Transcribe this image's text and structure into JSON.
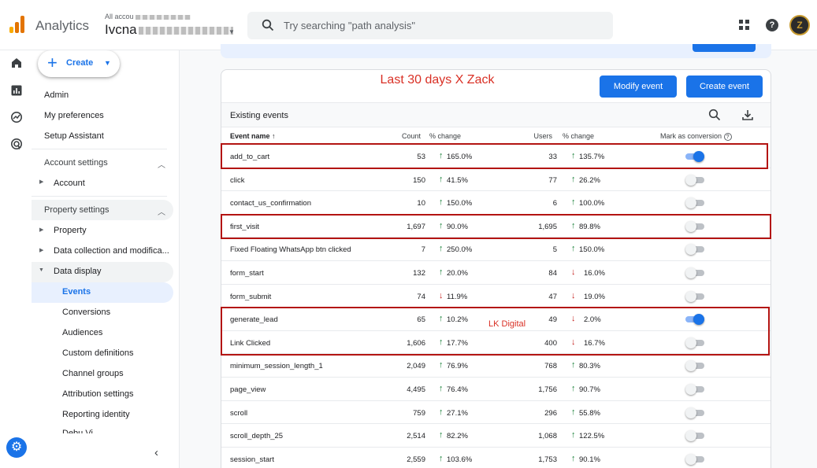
{
  "header": {
    "app_name": "Analytics",
    "account_small": "All accou",
    "account_big": "Ivcna",
    "search_placeholder": "Try searching \"path analysis\"",
    "avatar_letter": "Z"
  },
  "sidebar": {
    "create_label": "Create",
    "top_items": [
      "Admin",
      "My preferences",
      "Setup Assistant"
    ],
    "account_settings": {
      "label": "Account settings",
      "items": [
        "Account"
      ]
    },
    "property_settings": {
      "label": "Property settings",
      "items": [
        "Property",
        "Data collection and modifica...",
        "Data display"
      ]
    },
    "data_display_items": [
      "Events",
      "Conversions",
      "Audiences",
      "Custom definitions",
      "Channel groups",
      "Attribution settings",
      "Reporting identity"
    ],
    "selected": "Events",
    "cut_off_item": "Debu   Vi"
  },
  "card": {
    "annotation_title": "Last 30 days X Zack",
    "modify_button": "Modify event",
    "create_button": "Create event",
    "existing_events_label": "Existing events",
    "watermark": "LK Digital"
  },
  "table": {
    "columns": {
      "event_name": "Event name",
      "count": "Count",
      "count_change": "% change",
      "users": "Users",
      "users_change": "% change",
      "mark_conversion": "Mark as conversion"
    },
    "rows": [
      {
        "name": "add_to_cart",
        "count": "53",
        "count_dir": "up",
        "count_change": "165.0%",
        "users": "33",
        "users_dir": "up",
        "users_change": "135.7%",
        "conversion": true
      },
      {
        "name": "click",
        "count": "150",
        "count_dir": "up",
        "count_change": "41.5%",
        "users": "77",
        "users_dir": "up",
        "users_change": "26.2%",
        "conversion": false
      },
      {
        "name": "contact_us_confirmation",
        "count": "10",
        "count_dir": "up",
        "count_change": "150.0%",
        "users": "6",
        "users_dir": "up",
        "users_change": "100.0%",
        "conversion": false
      },
      {
        "name": "first_visit",
        "count": "1,697",
        "count_dir": "up",
        "count_change": "90.0%",
        "users": "1,695",
        "users_dir": "up",
        "users_change": "89.8%",
        "conversion": false
      },
      {
        "name": "Fixed Floating WhatsApp btn clicked",
        "count": "7",
        "count_dir": "up",
        "count_change": "250.0%",
        "users": "5",
        "users_dir": "up",
        "users_change": "150.0%",
        "conversion": false
      },
      {
        "name": "form_start",
        "count": "132",
        "count_dir": "up",
        "count_change": "20.0%",
        "users": "84",
        "users_dir": "down",
        "users_change": "16.0%",
        "conversion": false
      },
      {
        "name": "form_submit",
        "count": "74",
        "count_dir": "down",
        "count_change": "11.9%",
        "users": "47",
        "users_dir": "down",
        "users_change": "19.0%",
        "conversion": false
      },
      {
        "name": "generate_lead",
        "count": "65",
        "count_dir": "up",
        "count_change": "10.2%",
        "users": "49",
        "users_dir": "down",
        "users_change": "2.0%",
        "conversion": true
      },
      {
        "name": "Link Clicked",
        "count": "1,606",
        "count_dir": "up",
        "count_change": "17.7%",
        "users": "400",
        "users_dir": "down",
        "users_change": "16.7%",
        "conversion": false
      },
      {
        "name": "minimum_session_length_1",
        "count": "2,049",
        "count_dir": "up",
        "count_change": "76.9%",
        "users": "768",
        "users_dir": "up",
        "users_change": "80.3%",
        "conversion": false
      },
      {
        "name": "page_view",
        "count": "4,495",
        "count_dir": "up",
        "count_change": "76.4%",
        "users": "1,756",
        "users_dir": "up",
        "users_change": "90.7%",
        "conversion": false
      },
      {
        "name": "scroll",
        "count": "759",
        "count_dir": "up",
        "count_change": "27.1%",
        "users": "296",
        "users_dir": "up",
        "users_change": "55.8%",
        "conversion": false
      },
      {
        "name": "scroll_depth_25",
        "count": "2,514",
        "count_dir": "up",
        "count_change": "82.2%",
        "users": "1,068",
        "users_dir": "up",
        "users_change": "122.5%",
        "conversion": false
      },
      {
        "name": "session_start",
        "count": "2,559",
        "count_dir": "up",
        "count_change": "103.6%",
        "users": "1,753",
        "users_dir": "up",
        "users_change": "90.1%",
        "conversion": false
      }
    ]
  },
  "colors": {
    "accent": "#1a73e8",
    "up": "#188038",
    "down": "#c5221f",
    "annotation": "#b31412"
  }
}
